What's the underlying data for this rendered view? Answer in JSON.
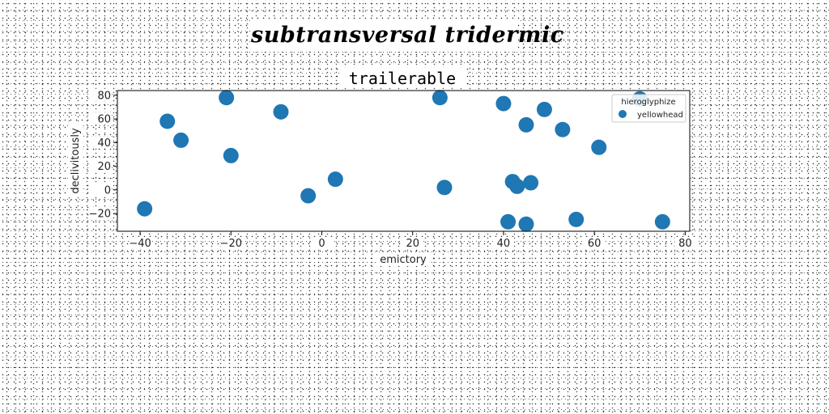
{
  "suptitle": "subtransversal tridermic",
  "chart_data": {
    "type": "scatter",
    "title": "trailerable",
    "xlabel": "emictory",
    "ylabel": "declivitously",
    "xlim": [
      -45,
      81
    ],
    "ylim": [
      -35,
      84
    ],
    "xticks": [
      -40,
      -20,
      0,
      20,
      40,
      60,
      80
    ],
    "yticks": [
      -20,
      0,
      20,
      40,
      60,
      80
    ],
    "grid": false,
    "legend": {
      "title": "hieroglyphize",
      "placement": "top-right"
    },
    "series": [
      {
        "name": "yellowhead",
        "color": "#1f77b4",
        "points": [
          {
            "x": -39,
            "y": -16
          },
          {
            "x": -34,
            "y": 58
          },
          {
            "x": -31,
            "y": 42
          },
          {
            "x": -21,
            "y": 78
          },
          {
            "x": -20,
            "y": 29
          },
          {
            "x": -9,
            "y": 66
          },
          {
            "x": -3,
            "y": -5
          },
          {
            "x": 3,
            "y": 9
          },
          {
            "x": 26,
            "y": 78
          },
          {
            "x": 27,
            "y": 2
          },
          {
            "x": 40,
            "y": 73
          },
          {
            "x": 41,
            "y": -27
          },
          {
            "x": 42,
            "y": 7
          },
          {
            "x": 43,
            "y": 3
          },
          {
            "x": 45,
            "y": 55
          },
          {
            "x": 45,
            "y": -29
          },
          {
            "x": 46,
            "y": 6
          },
          {
            "x": 49,
            "y": 68
          },
          {
            "x": 53,
            "y": 51
          },
          {
            "x": 56,
            "y": -25
          },
          {
            "x": 61,
            "y": 36
          },
          {
            "x": 70,
            "y": 77
          },
          {
            "x": 75,
            "y": -27
          }
        ]
      }
    ]
  }
}
